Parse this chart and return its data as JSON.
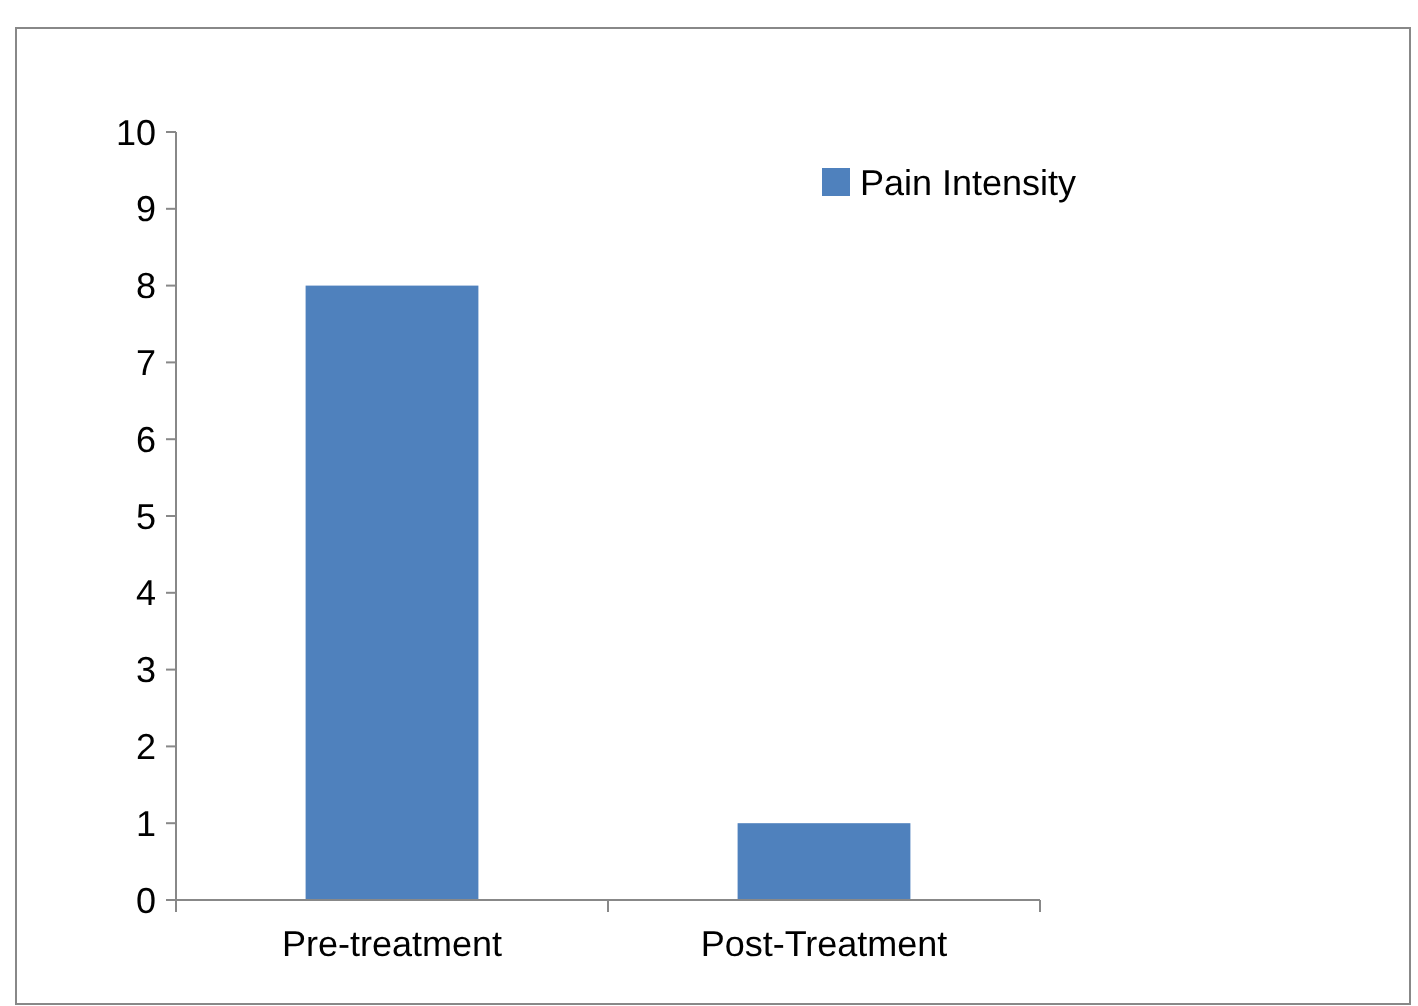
{
  "chart_data": {
    "type": "bar",
    "categories": [
      "Pre-treatment",
      "Post-Treatment"
    ],
    "series": [
      {
        "name": "Pain Intensity",
        "color": "#4f81bd",
        "values": [
          8,
          1
        ]
      }
    ],
    "ylim": [
      0,
      10
    ],
    "yticks": [
      0,
      1,
      2,
      3,
      4,
      5,
      6,
      7,
      8,
      9,
      10
    ],
    "grid": false,
    "legend": "top right"
  }
}
